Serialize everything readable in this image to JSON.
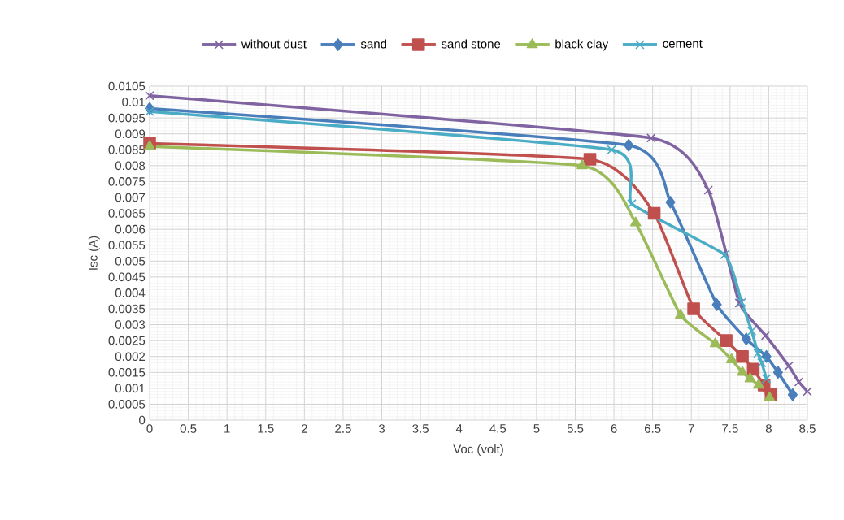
{
  "chart_data": {
    "type": "line",
    "xlabel": "Voc (volt)",
    "ylabel": "Isc (A)",
    "xlim": [
      0,
      8.5
    ],
    "ylim": [
      0,
      0.0105
    ],
    "xticks": [
      0,
      0.5,
      1,
      1.5,
      2,
      2.5,
      3,
      3.5,
      4,
      4.5,
      5,
      5.5,
      6,
      6.5,
      7,
      7.5,
      8,
      8.5
    ],
    "yticks": [
      0,
      0.0005,
      0.001,
      0.0015,
      0.002,
      0.0025,
      0.003,
      0.0035,
      0.004,
      0.0045,
      0.005,
      0.0055,
      0.006,
      0.0065,
      0.007,
      0.0075,
      0.008,
      0.0085,
      0.009,
      0.0095,
      0.01,
      0.0105
    ],
    "grid": true,
    "legend": "top",
    "line_style": "solid",
    "series": [
      {
        "name": "without dust",
        "color": "#8064a2",
        "marker": "cross",
        "x": [
          0,
          6.48,
          7.22,
          7.62,
          7.96,
          8.26,
          8.39,
          8.5
        ],
        "values": [
          0.0102,
          0.00887,
          0.00723,
          0.00368,
          0.00266,
          0.0017,
          0.0012,
          0.0009
        ]
      },
      {
        "name": "sand",
        "color": "#4a7ebb",
        "marker": "diamond",
        "x": [
          0,
          6.19,
          6.73,
          7.33,
          7.71,
          7.97,
          8.12,
          8.31
        ],
        "values": [
          0.0098,
          0.00864,
          0.00685,
          0.00363,
          0.00255,
          0.002,
          0.0015,
          0.0008
        ]
      },
      {
        "name": "sand stone",
        "color": "#c0504d",
        "marker": "square",
        "x": [
          0,
          5.69,
          6.52,
          7.03,
          7.45,
          7.66,
          7.8,
          7.94,
          8.03
        ],
        "values": [
          0.0087,
          0.0082,
          0.0065,
          0.0035,
          0.0025,
          0.002,
          0.0016,
          0.0011,
          0.0008
        ]
      },
      {
        "name": "black clay",
        "color": "#9bbb59",
        "marker": "triangle",
        "x": [
          0,
          5.59,
          6.28,
          6.86,
          7.31,
          7.52,
          7.66,
          7.76,
          7.87,
          8.01
        ],
        "values": [
          0.0086,
          0.008,
          0.0062,
          0.0033,
          0.0024,
          0.0019,
          0.0015,
          0.0013,
          0.0011,
          0.0007
        ]
      },
      {
        "name": "cement",
        "color": "#4bacc6",
        "marker": "cross",
        "x": [
          0,
          5.97,
          6.23,
          7.43,
          7.65,
          7.78,
          7.86,
          7.91,
          7.97
        ],
        "values": [
          0.0097,
          0.0085,
          0.0068,
          0.0052,
          0.0037,
          0.0028,
          0.0021,
          0.0018,
          0.0013
        ]
      }
    ]
  }
}
